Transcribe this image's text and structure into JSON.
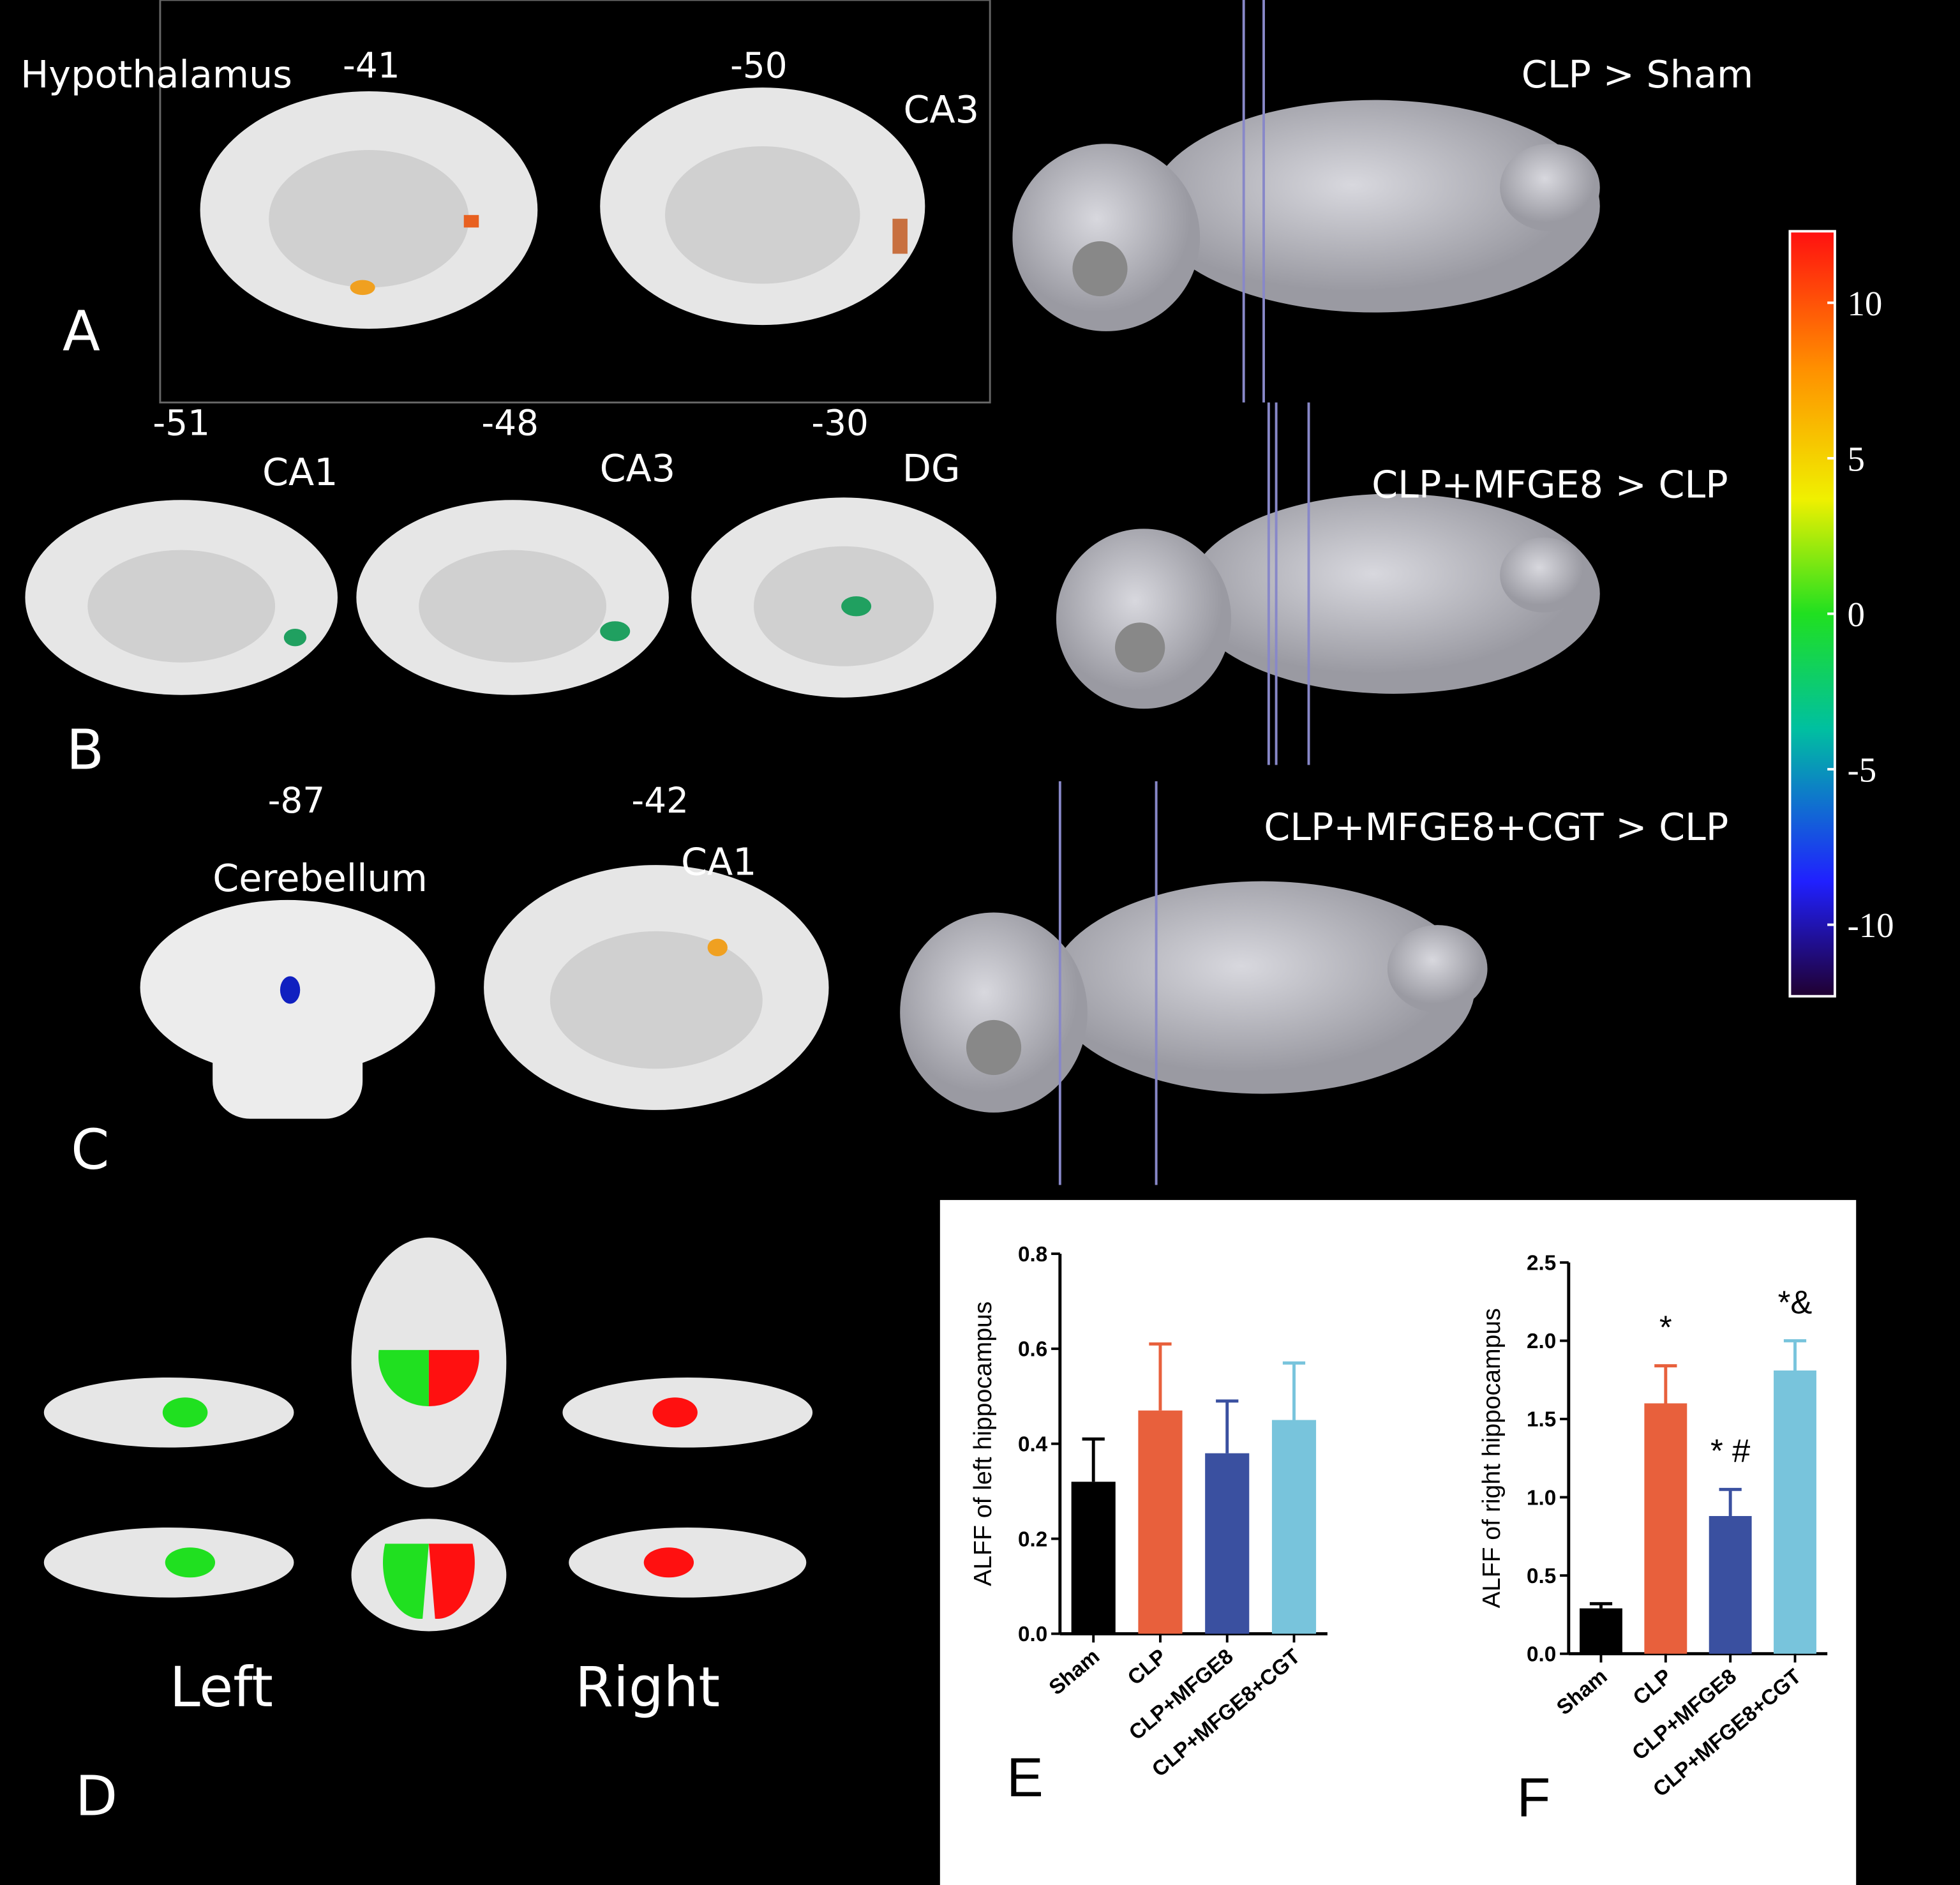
{
  "figure": {
    "panels": [
      {
        "letter": "A",
        "contrast": "CLP > Sham",
        "slices": [
          {
            "coord": -41,
            "region": "Hypothalamus"
          },
          {
            "coord": -50,
            "region": "CA3"
          }
        ]
      },
      {
        "letter": "B",
        "contrast": "CLP+MFGE8 > CLP",
        "slices": [
          {
            "coord": -51,
            "region": "CA1"
          },
          {
            "coord": -48,
            "region": "CA3"
          },
          {
            "coord": -30,
            "region": "DG"
          }
        ]
      },
      {
        "letter": "C",
        "contrast": "CLP+MFGE8+CGT > CLP",
        "slices": [
          {
            "coord": -87,
            "region": "Cerebellum"
          },
          {
            "coord": -42,
            "region": "CA1"
          }
        ]
      },
      {
        "letter": "D",
        "left": "Left",
        "right": "Right"
      }
    ],
    "colorbar": {
      "lim": [
        -12.3,
        12.3
      ],
      "ticks": [
        10,
        5,
        0,
        -5,
        -10
      ]
    }
  },
  "chart_data": [
    {
      "type": "bar",
      "letter": "E",
      "ylabel": "ALFF of left hippocampus",
      "categories": [
        "Sham",
        "CLP",
        "CLP+MFGE8",
        "CLP+MFGE8+CGT"
      ],
      "values": [
        0.32,
        0.47,
        0.38,
        0.45
      ],
      "errors": [
        0.09,
        0.14,
        0.11,
        0.12
      ],
      "colors": [
        "#000000",
        "#e8603c",
        "#3a50a0",
        "#78c4dc"
      ],
      "ylim": [
        0,
        0.8
      ],
      "yticks": [
        {
          "value": 0,
          "label": "0.0"
        },
        0.2,
        0.4,
        0.6,
        0.8
      ]
    },
    {
      "type": "bar",
      "letter": "F",
      "ylabel": "ALFF of right hippocampus",
      "categories": [
        "Sham",
        "CLP",
        "CLP+MFGE8",
        "CLP+MFGE8+CGT"
      ],
      "values": [
        0.29,
        1.6,
        0.88,
        1.81
      ],
      "errors": [
        0.03,
        0.24,
        0.17,
        0.19
      ],
      "colors": [
        "#000000",
        "#e8603c",
        "#3a50a0",
        "#78c4dc"
      ],
      "annotations": [
        {
          "category": "CLP",
          "text": "*"
        },
        {
          "category": "CLP+MFGE8",
          "text": "* #"
        },
        {
          "category": "CLP+MFGE8+CGT",
          "text": "*&"
        }
      ],
      "ylim": [
        0,
        2.5
      ],
      "yticks": [
        {
          "value": 0,
          "label": "0.0"
        },
        0.5,
        {
          "value": 1,
          "label": "1.0"
        },
        1.5,
        {
          "value": 2,
          "label": "2.0"
        },
        2.5
      ]
    }
  ]
}
